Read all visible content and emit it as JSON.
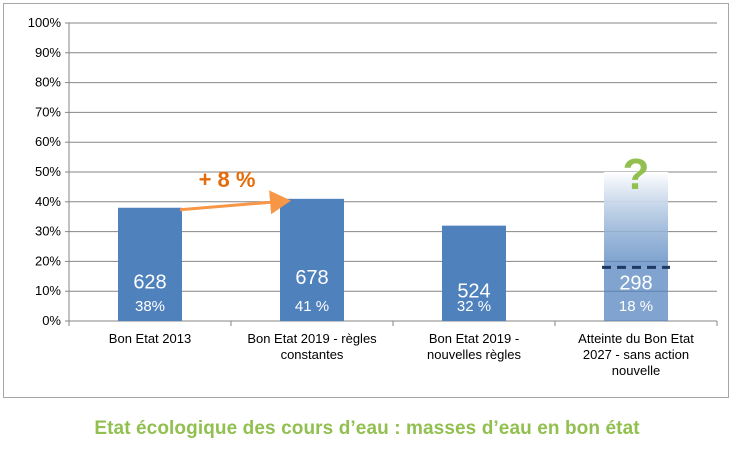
{
  "chart_data": {
    "type": "bar",
    "title": "",
    "xlabel": "",
    "ylabel": "",
    "ylim": [
      0,
      100
    ],
    "y_ticks": [
      "0%",
      "10%",
      "20%",
      "30%",
      "40%",
      "50%",
      "60%",
      "70%",
      "80%",
      "90%",
      "100%"
    ],
    "grid": true,
    "legend": "none",
    "categories": [
      "Bon Etat 2013",
      "Bon Etat 2019 - règles constantes",
      "Bon Etat 2019 - nouvelles règles",
      "Atteinte du Bon Etat 2027 - sans action nouvelle"
    ],
    "category_lines": [
      [
        "Bon Etat 2013"
      ],
      [
        "Bon Etat 2019 - règles",
        "constantes"
      ],
      [
        "Bon Etat 2019 -",
        "nouvelles règles"
      ],
      [
        "Atteinte du Bon Etat",
        "2027 - sans action",
        "nouvelle"
      ]
    ],
    "values": [
      38,
      41,
      32,
      18
    ],
    "counts": [
      "628",
      "678",
      "524",
      "298"
    ],
    "percent_labels": [
      "38%",
      "41 %",
      "32 %",
      "18 %"
    ],
    "uncertain_upper": 50,
    "annotations": {
      "increase": "+ 8 %",
      "question": "?"
    },
    "colors": {
      "bar": "#4f81bd",
      "grid": "#868686",
      "arrow": "#f79646",
      "increase_text": "#e46c0a",
      "question": "#92c050",
      "dashed": "#1f3864"
    }
  },
  "caption": "Etat écologique des cours d’eau : masses d’eau en bon état"
}
